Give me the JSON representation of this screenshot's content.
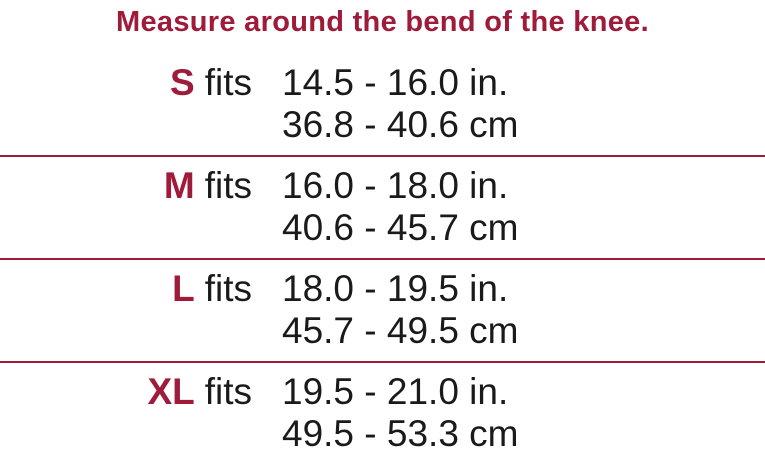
{
  "title": "Measure around the bend of the knee.",
  "fits_label": "fits",
  "accent_color": "#9e1b3a",
  "rows": [
    {
      "size": "S",
      "inches": "14.5 - 16.0 in.",
      "cm": "36.8 - 40.6 cm"
    },
    {
      "size": "M",
      "inches": "16.0 - 18.0 in.",
      "cm": "40.6 - 45.7 cm"
    },
    {
      "size": "L",
      "inches": "18.0 - 19.5 in.",
      "cm": "45.7 - 49.5 cm"
    },
    {
      "size": "XL",
      "inches": "19.5 - 21.0 in.",
      "cm": "49.5 - 53.3 cm"
    }
  ]
}
